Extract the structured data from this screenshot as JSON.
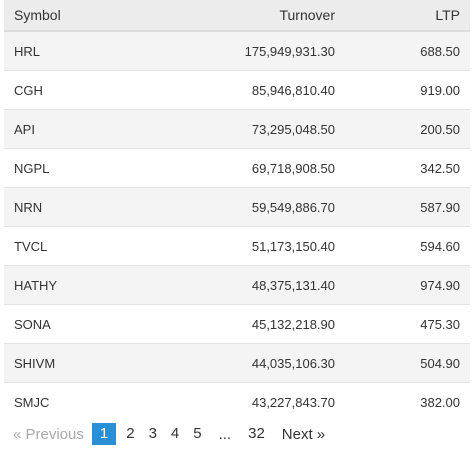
{
  "table": {
    "columns": [
      "Symbol",
      "Turnover",
      "LTP"
    ],
    "rows": [
      [
        "HRL",
        "175,949,931.30",
        "688.50"
      ],
      [
        "CGH",
        "85,946,810.40",
        "919.00"
      ],
      [
        "API",
        "73,295,048.50",
        "200.50"
      ],
      [
        "NGPL",
        "69,718,908.50",
        "342.50"
      ],
      [
        "NRN",
        "59,549,886.70",
        "587.90"
      ],
      [
        "TVCL",
        "51,173,150.40",
        "594.60"
      ],
      [
        "HATHY",
        "48,375,131.40",
        "974.90"
      ],
      [
        "SONA",
        "45,132,218.90",
        "475.30"
      ],
      [
        "SHIVM",
        "44,035,106.30",
        "504.90"
      ],
      [
        "SMJC",
        "43,227,843.70",
        "382.00"
      ]
    ]
  },
  "pagination": {
    "previous": "« Previous",
    "pages": [
      "1",
      "2",
      "3",
      "4",
      "5"
    ],
    "ellipsis": "...",
    "last": "32",
    "next": "Next »",
    "active_page": "1"
  }
}
